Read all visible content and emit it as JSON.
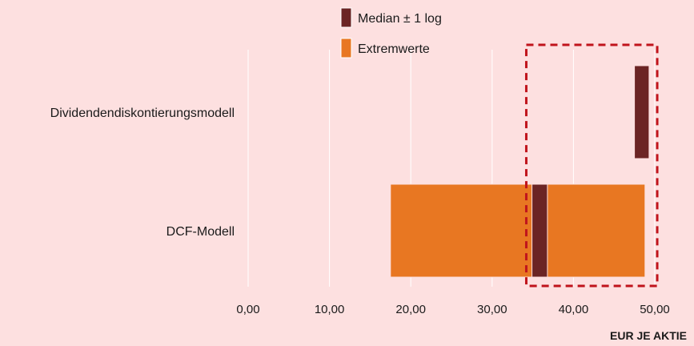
{
  "chart_data": {
    "type": "bar",
    "orientation": "horizontal",
    "categories": [
      "Dividendendiskontierungsmodell",
      "DCF-Modell"
    ],
    "series": [
      {
        "name": "Extremwerte",
        "color": "#e87722",
        "ranges": [
          null,
          [
            17.5,
            48.8
          ]
        ]
      },
      {
        "name": "Median ± 1 log",
        "color": "#6b2424",
        "ranges": [
          [
            47.5,
            49.3
          ],
          [
            34.9,
            36.8
          ]
        ]
      }
    ],
    "x_ticks": [
      0,
      10,
      20,
      30,
      40,
      50
    ],
    "x_tick_labels": [
      "0,00",
      "10,00",
      "20,00",
      "30,00",
      "40,00",
      "50,00"
    ],
    "xlim": [
      0,
      50
    ],
    "xlabel": "EUR JE AKTIE",
    "highlight_range": [
      34.2,
      50.3
    ],
    "grid": "vertical",
    "legend_position": "top"
  }
}
